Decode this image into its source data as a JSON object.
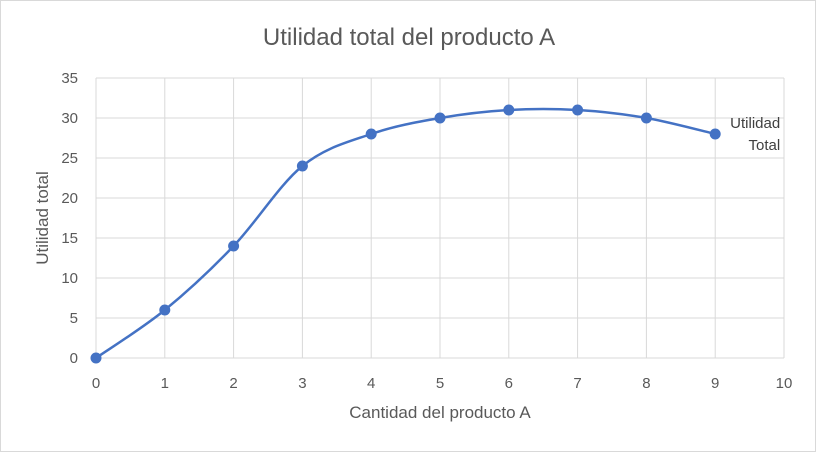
{
  "chart_data": {
    "type": "line",
    "title": "Utilidad total del producto A",
    "xlabel": "Cantidad del producto A",
    "ylabel": "Utilidad total",
    "xlim": [
      0,
      10
    ],
    "ylim": [
      0,
      35
    ],
    "x_ticks": [
      0,
      1,
      2,
      3,
      4,
      5,
      6,
      7,
      8,
      9,
      10
    ],
    "y_ticks": [
      0,
      5,
      10,
      15,
      20,
      25,
      30,
      35
    ],
    "grid": true,
    "smooth": true,
    "legend": "none",
    "series": [
      {
        "name_lines": [
          "Utilidad",
          "Total"
        ],
        "color": "#4472c4",
        "x": [
          0,
          1,
          2,
          3,
          4,
          5,
          6,
          7,
          8,
          9
        ],
        "y": [
          0,
          6,
          14,
          24,
          28,
          30,
          31,
          31,
          30,
          28
        ]
      }
    ],
    "gridline_color": "#d9d9d9"
  }
}
